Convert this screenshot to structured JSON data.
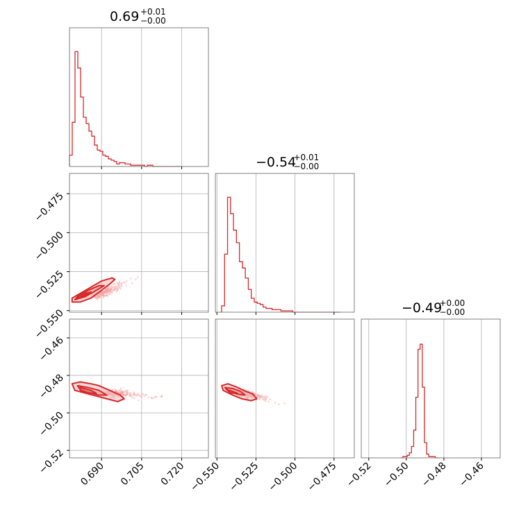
{
  "chart_data": [
    {
      "type": "histogram",
      "panel": "1-1",
      "title": {
        "median": "0.69",
        "plus": "+0.01",
        "minus": "−0.00"
      },
      "xlim": [
        0.678,
        0.73
      ],
      "xticks": [
        0.69,
        0.705,
        0.72
      ],
      "bins": {
        "start": 0.678,
        "width": 0.00104,
        "counts": [
          0.09,
          0.35,
          0.91,
          0.78,
          0.55,
          0.39,
          0.34,
          0.28,
          0.24,
          0.17,
          0.13,
          0.12,
          0.09,
          0.08,
          0.06,
          0.05,
          0.04,
          0.02,
          0.03,
          0.03,
          0.02,
          0.02,
          0.01,
          0.01,
          0.01,
          0.01,
          0.01,
          0.0,
          0.01,
          0.01,
          0.0,
          0.0,
          0.0,
          0.0,
          0.0,
          0.0,
          0.0,
          0.0,
          0.0,
          0.0
        ]
      }
    },
    {
      "type": "scatter-contour",
      "panel": "2-1",
      "xlim": [
        0.678,
        0.73
      ],
      "ylim": [
        -0.551,
        -0.462
      ],
      "xticks": [
        0.69,
        0.705,
        0.72
      ],
      "yticks": [
        -0.55,
        -0.525,
        -0.5,
        -0.475
      ],
      "ytick_labels": [
        "−0.550",
        "−0.525",
        "−0.500",
        "−0.475"
      ],
      "cloud": {
        "center": [
          0.6875,
          -0.541
        ],
        "along": [
          0.006,
          0.0045
        ],
        "spread": 0.0028,
        "n": 240
      },
      "contours": [
        [
          [
            0.679,
            -0.5445
          ],
          [
            0.682,
            -0.5445
          ],
          [
            0.686,
            -0.542
          ],
          [
            0.69,
            -0.537
          ],
          [
            0.693,
            -0.533
          ],
          [
            0.695,
            -0.53
          ],
          [
            0.694,
            -0.529
          ],
          [
            0.69,
            -0.531
          ],
          [
            0.686,
            -0.535
          ],
          [
            0.682,
            -0.539
          ],
          [
            0.679,
            -0.542
          ]
        ],
        [
          [
            0.68,
            -0.543
          ],
          [
            0.684,
            -0.541
          ],
          [
            0.688,
            -0.537
          ],
          [
            0.691,
            -0.534
          ],
          [
            0.689,
            -0.534
          ],
          [
            0.685,
            -0.537
          ],
          [
            0.681,
            -0.541
          ]
        ],
        [
          [
            0.681,
            -0.542
          ],
          [
            0.684,
            -0.54
          ],
          [
            0.686,
            -0.538
          ],
          [
            0.684,
            -0.539
          ],
          [
            0.681,
            -0.541
          ]
        ]
      ]
    },
    {
      "type": "histogram",
      "panel": "2-2",
      "title": {
        "median": "−0.54",
        "plus": "+0.01",
        "minus": "−0.00"
      },
      "xlim": [
        -0.551,
        -0.462
      ],
      "xticks": [
        -0.55,
        -0.525,
        -0.5,
        -0.475
      ],
      "bins": {
        "start": -0.547,
        "width": 0.0019,
        "counts": [
          0.05,
          0.46,
          0.91,
          0.78,
          0.65,
          0.55,
          0.4,
          0.35,
          0.27,
          0.18,
          0.11,
          0.08,
          0.07,
          0.06,
          0.04,
          0.03,
          0.03,
          0.02,
          0.02,
          0.02,
          0.01,
          0.01,
          0.01,
          0.01,
          0.0,
          0.0,
          0.0,
          0.0,
          0.0,
          0.0,
          0.0,
          0.0,
          0.0,
          0.0,
          0.0,
          0.0,
          0.0,
          0.0,
          0.0,
          0.0
        ]
      }
    },
    {
      "type": "scatter-contour",
      "panel": "3-1",
      "xlim": [
        0.678,
        0.73
      ],
      "ylim": [
        -0.524,
        -0.45
      ],
      "xticks": [
        0.69,
        0.705,
        0.72
      ],
      "yticks": [
        -0.52,
        -0.5,
        -0.48,
        -0.46
      ],
      "ytick_labels": [
        "−0.52",
        "−0.50",
        "−0.48",
        "−0.46"
      ],
      "xtick_labels": [
        "0.690",
        "0.705",
        "0.720"
      ],
      "cloud": {
        "center": [
          0.6915,
          -0.489
        ],
        "along": [
          0.008,
          -0.001
        ],
        "spread": 0.0028,
        "n": 240
      },
      "contours": [
        [
          [
            0.679,
            -0.4845
          ],
          [
            0.682,
            -0.4835
          ],
          [
            0.686,
            -0.4845
          ],
          [
            0.689,
            -0.4855
          ],
          [
            0.693,
            -0.488
          ],
          [
            0.697,
            -0.4905
          ],
          [
            0.6985,
            -0.4925
          ],
          [
            0.696,
            -0.494
          ],
          [
            0.692,
            -0.4925
          ],
          [
            0.688,
            -0.491
          ],
          [
            0.684,
            -0.4895
          ],
          [
            0.68,
            -0.488
          ]
        ],
        [
          [
            0.681,
            -0.4855
          ],
          [
            0.685,
            -0.4865
          ],
          [
            0.689,
            -0.488
          ],
          [
            0.692,
            -0.4905
          ],
          [
            0.689,
            -0.4905
          ],
          [
            0.685,
            -0.489
          ],
          [
            0.682,
            -0.4875
          ]
        ],
        [
          [
            0.682,
            -0.4865
          ],
          [
            0.686,
            -0.488
          ],
          [
            0.688,
            -0.4895
          ],
          [
            0.685,
            -0.4895
          ],
          [
            0.682,
            -0.488
          ]
        ]
      ]
    },
    {
      "type": "scatter-contour",
      "panel": "3-2",
      "xlim": [
        -0.551,
        -0.462
      ],
      "ylim": [
        -0.524,
        -0.45
      ],
      "xticks": [
        -0.55,
        -0.525,
        -0.5,
        -0.475
      ],
      "xtick_labels": [
        "−0.550",
        "−0.525",
        "−0.500",
        "−0.475"
      ],
      "cloud": {
        "center": [
          -0.536,
          -0.489
        ],
        "along": [
          0.01,
          -0.002
        ],
        "spread": 0.0028,
        "n": 240
      },
      "contours": [
        [
          [
            -0.547,
            -0.4855
          ],
          [
            -0.543,
            -0.4845
          ],
          [
            -0.538,
            -0.486
          ],
          [
            -0.533,
            -0.488
          ],
          [
            -0.527,
            -0.49
          ],
          [
            -0.5245,
            -0.4925
          ],
          [
            -0.528,
            -0.4935
          ],
          [
            -0.534,
            -0.4925
          ],
          [
            -0.54,
            -0.4905
          ],
          [
            -0.546,
            -0.488
          ]
        ],
        [
          [
            -0.545,
            -0.4865
          ],
          [
            -0.54,
            -0.487
          ],
          [
            -0.535,
            -0.4885
          ],
          [
            -0.532,
            -0.4905
          ],
          [
            -0.537,
            -0.49
          ],
          [
            -0.542,
            -0.4885
          ]
        ],
        [
          [
            -0.544,
            -0.4875
          ],
          [
            -0.54,
            -0.4885
          ],
          [
            -0.537,
            -0.4895
          ],
          [
            -0.541,
            -0.4895
          ]
        ]
      ]
    },
    {
      "type": "histogram",
      "panel": "3-3",
      "title": {
        "median": "−0.49",
        "plus": "+0.00",
        "minus": "−0.00"
      },
      "xlim": [
        -0.524,
        -0.45
      ],
      "xticks": [
        -0.52,
        -0.5,
        -0.48,
        -0.46
      ],
      "xtick_labels": [
        "−0.52",
        "−0.50",
        "−0.48",
        "−0.46"
      ],
      "bins": {
        "start": -0.503,
        "width": 0.00115,
        "counts": [
          0.0,
          0.01,
          0.01,
          0.02,
          0.04,
          0.09,
          0.22,
          0.48,
          0.86,
          0.9,
          0.56,
          0.12,
          0.03,
          0.01,
          0.01,
          0.01,
          0.0,
          0.0
        ]
      }
    }
  ],
  "colors": {
    "line": "#d62728",
    "fill": "#f3b9ba",
    "scatter": "#f5a3a4"
  }
}
